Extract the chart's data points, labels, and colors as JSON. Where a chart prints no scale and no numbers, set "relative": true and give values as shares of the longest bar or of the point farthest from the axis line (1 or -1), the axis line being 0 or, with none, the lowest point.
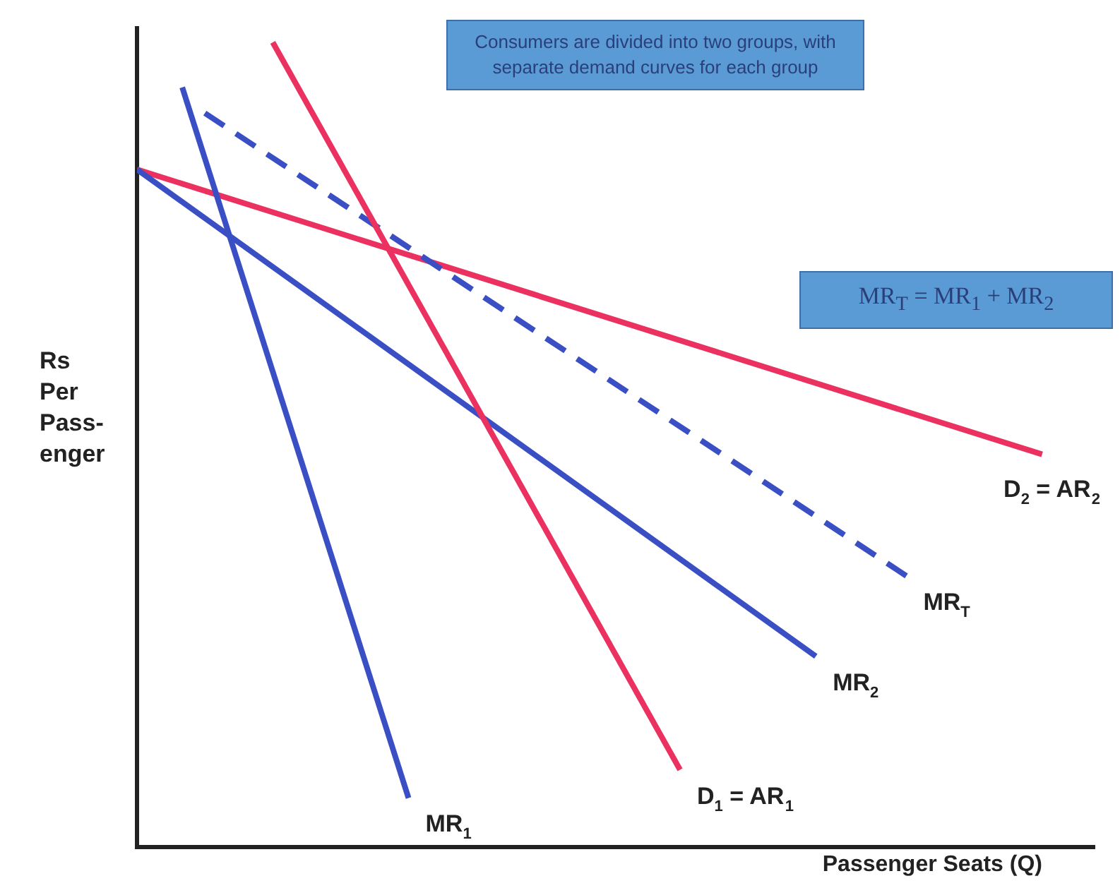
{
  "chart_data": {
    "type": "line",
    "relative": true,
    "xlabel": "Passenger Seats (Q)",
    "ylabel": "Rs Per Pass- enger",
    "grid": false,
    "legend": false,
    "marker": "none",
    "annotations": [
      "Consumers are divided into two groups, with separate demand curves for each group",
      "MR$_{T}$ = MR$_{1}$ + MR$_{2}$"
    ],
    "categories": [
      null,
      null,
      null,
      null,
      null,
      null,
      null,
      null,
      null,
      null,
      null,
      null,
      null,
      null,
      null,
      null,
      null,
      null,
      null,
      null,
      null,
      null,
      null,
      null,
      null,
      null,
      null,
      null,
      null,
      null,
      null,
      null,
      null,
      null,
      null,
      null,
      null,
      null,
      null,
      null,
      null
    ],
    "series": [
      {
        "name": "MR$_{1}$",
        "color": "#3a4fc4",
        "line_style": "solid",
        "values": [
          null,
          null,
          0.944,
          null,
          null,
          null,
          null,
          null,
          null,
          null,
          null,
          null,
          0.061,
          null,
          null,
          null,
          null,
          null,
          null,
          null,
          null,
          null,
          null,
          null,
          null,
          null,
          null,
          null,
          null,
          null,
          null,
          null,
          null,
          null,
          null,
          null,
          null,
          null,
          null,
          null,
          null
        ]
      },
      {
        "name": "D$_{1}$ = AR$_{1}$",
        "color": "#ea3160",
        "line_style": "solid",
        "values": [
          null,
          null,
          null,
          null,
          null,
          null,
          1.0,
          null,
          null,
          null,
          null,
          null,
          null,
          null,
          null,
          null,
          null,
          null,
          null,
          null,
          null,
          null,
          null,
          null,
          0.096,
          null,
          null,
          null,
          null,
          null,
          null,
          null,
          null,
          null,
          null,
          null,
          null,
          null,
          null,
          null,
          null
        ]
      },
      {
        "name": "MR$_{2}$",
        "color": "#3a4fc4",
        "line_style": "solid",
        "values": [
          0.842,
          null,
          null,
          null,
          null,
          null,
          null,
          null,
          null,
          null,
          null,
          null,
          null,
          null,
          null,
          null,
          null,
          null,
          null,
          null,
          null,
          null,
          null,
          null,
          null,
          null,
          null,
          null,
          null,
          null,
          0.237,
          null,
          null,
          null,
          null,
          null,
          null,
          null,
          null,
          null,
          null
        ]
      },
      {
        "name": "MR$_{T}$",
        "color": "#3a4fc4",
        "line_style": "dashed",
        "values": [
          null,
          null,
          null,
          0.912,
          null,
          null,
          null,
          null,
          null,
          null,
          null,
          null,
          null,
          null,
          null,
          null,
          null,
          null,
          null,
          null,
          null,
          null,
          null,
          null,
          null,
          null,
          null,
          null,
          null,
          null,
          null,
          null,
          null,
          null,
          0.337,
          null,
          null,
          null,
          null,
          null,
          null
        ]
      },
      {
        "name": "D$_{2}$ = AR$_{2}$",
        "color": "#ea3160",
        "line_style": "solid",
        "values": [
          0.842,
          null,
          null,
          null,
          null,
          null,
          null,
          null,
          null,
          null,
          null,
          null,
          null,
          null,
          null,
          null,
          null,
          null,
          null,
          null,
          null,
          null,
          null,
          null,
          null,
          null,
          null,
          null,
          null,
          null,
          null,
          null,
          null,
          null,
          null,
          null,
          null,
          null,
          null,
          null,
          0.488
        ]
      }
    ]
  }
}
